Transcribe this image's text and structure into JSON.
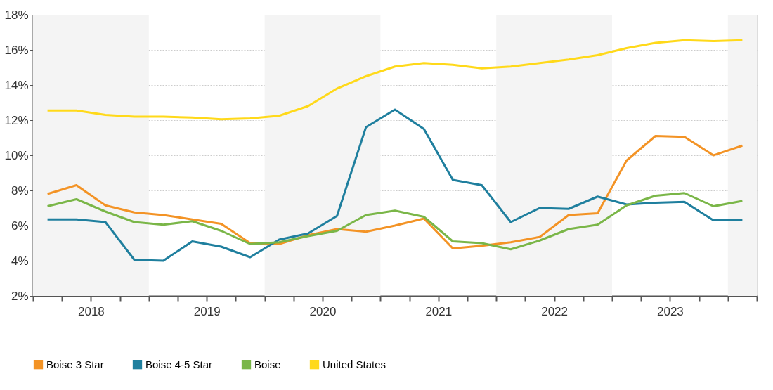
{
  "chart_data": {
    "type": "line",
    "x": [
      2018.125,
      2018.375,
      2018.625,
      2018.875,
      2019.125,
      2019.375,
      2019.625,
      2019.875,
      2020.125,
      2020.375,
      2020.625,
      2020.875,
      2021.125,
      2021.375,
      2021.625,
      2021.875,
      2022.125,
      2022.375,
      2022.625,
      2022.875,
      2023.125,
      2023.375,
      2023.625,
      2023.875,
      2024.125
    ],
    "series": [
      {
        "name": "Boise 3 Star",
        "color": "#f39325",
        "values": [
          7.8,
          8.3,
          7.15,
          6.75,
          6.6,
          6.35,
          6.1,
          5.0,
          4.95,
          5.45,
          5.8,
          5.65,
          6.0,
          6.4,
          4.7,
          4.85,
          5.05,
          5.35,
          6.6,
          6.7,
          9.7,
          11.1,
          11.05,
          10.0,
          10.55
        ]
      },
      {
        "name": "Boise 4-5 Star",
        "color": "#1f7f9e",
        "values": [
          6.35,
          6.35,
          6.2,
          4.05,
          4.0,
          5.1,
          4.8,
          4.2,
          5.2,
          5.55,
          6.55,
          11.6,
          12.6,
          11.5,
          8.6,
          8.3,
          6.2,
          7.0,
          6.95,
          7.65,
          7.2,
          7.3,
          7.35,
          6.3,
          6.3
        ]
      },
      {
        "name": "Boise",
        "color": "#7ab648",
        "values": [
          7.1,
          7.5,
          6.8,
          6.2,
          6.05,
          6.25,
          5.7,
          4.95,
          5.05,
          5.4,
          5.7,
          6.6,
          6.85,
          6.5,
          5.1,
          5.0,
          4.65,
          5.15,
          5.8,
          6.05,
          7.15,
          7.7,
          7.85,
          7.1,
          7.4
        ]
      },
      {
        "name": "United States",
        "color": "#ffd91a",
        "values": [
          12.55,
          12.55,
          12.3,
          12.2,
          12.2,
          12.15,
          12.05,
          12.1,
          12.25,
          12.8,
          13.8,
          14.5,
          15.05,
          15.25,
          15.15,
          14.95,
          15.05,
          15.25,
          15.45,
          15.7,
          16.1,
          16.4,
          16.55,
          16.5,
          16.55
        ]
      }
    ],
    "xlim": [
      2018,
      2024.25
    ],
    "xticks": [
      {
        "value": 2018,
        "label": null
      },
      {
        "value": 2018.25,
        "label": null
      },
      {
        "value": 2018.5,
        "label": "2018"
      },
      {
        "value": 2018.75,
        "label": null
      },
      {
        "value": 2019,
        "label": null
      },
      {
        "value": 2019.25,
        "label": null
      },
      {
        "value": 2019.5,
        "label": "2019"
      },
      {
        "value": 2019.75,
        "label": null
      },
      {
        "value": 2020,
        "label": null
      },
      {
        "value": 2020.25,
        "label": null
      },
      {
        "value": 2020.5,
        "label": "2020"
      },
      {
        "value": 2020.75,
        "label": null
      },
      {
        "value": 2021,
        "label": null
      },
      {
        "value": 2021.25,
        "label": null
      },
      {
        "value": 2021.5,
        "label": "2021"
      },
      {
        "value": 2021.75,
        "label": null
      },
      {
        "value": 2022,
        "label": null
      },
      {
        "value": 2022.25,
        "label": null
      },
      {
        "value": 2022.5,
        "label": "2022"
      },
      {
        "value": 2022.75,
        "label": null
      },
      {
        "value": 2023,
        "label": null
      },
      {
        "value": 2023.25,
        "label": null
      },
      {
        "value": 2023.5,
        "label": "2023"
      },
      {
        "value": 2023.75,
        "label": null
      },
      {
        "value": 2024,
        "label": null
      },
      {
        "value": 2024.25,
        "label": null
      }
    ],
    "ylim": [
      2,
      18
    ],
    "yticks": [
      {
        "value": 2,
        "label": "2%"
      },
      {
        "value": 4,
        "label": "4%"
      },
      {
        "value": 6,
        "label": "6%"
      },
      {
        "value": 8,
        "label": "8%"
      },
      {
        "value": 10,
        "label": "10%"
      },
      {
        "value": 12,
        "label": "12%"
      },
      {
        "value": 14,
        "label": "14%"
      },
      {
        "value": 16,
        "label": "16%"
      },
      {
        "value": 18,
        "label": "18%"
      }
    ],
    "bands": [
      {
        "axis": "x",
        "from": 2018,
        "to": 2019,
        "color": "#f4f4f4"
      },
      {
        "axis": "x",
        "from": 2020,
        "to": 2021,
        "color": "#f4f4f4"
      },
      {
        "axis": "x",
        "from": 2022,
        "to": 2023,
        "color": "#f4f4f4"
      },
      {
        "axis": "x",
        "from": 2024,
        "to": 2024.25,
        "color": "#f4f4f4"
      }
    ],
    "grid": "y",
    "legend": "bottom",
    "marker": "none",
    "line_style": "solid"
  }
}
